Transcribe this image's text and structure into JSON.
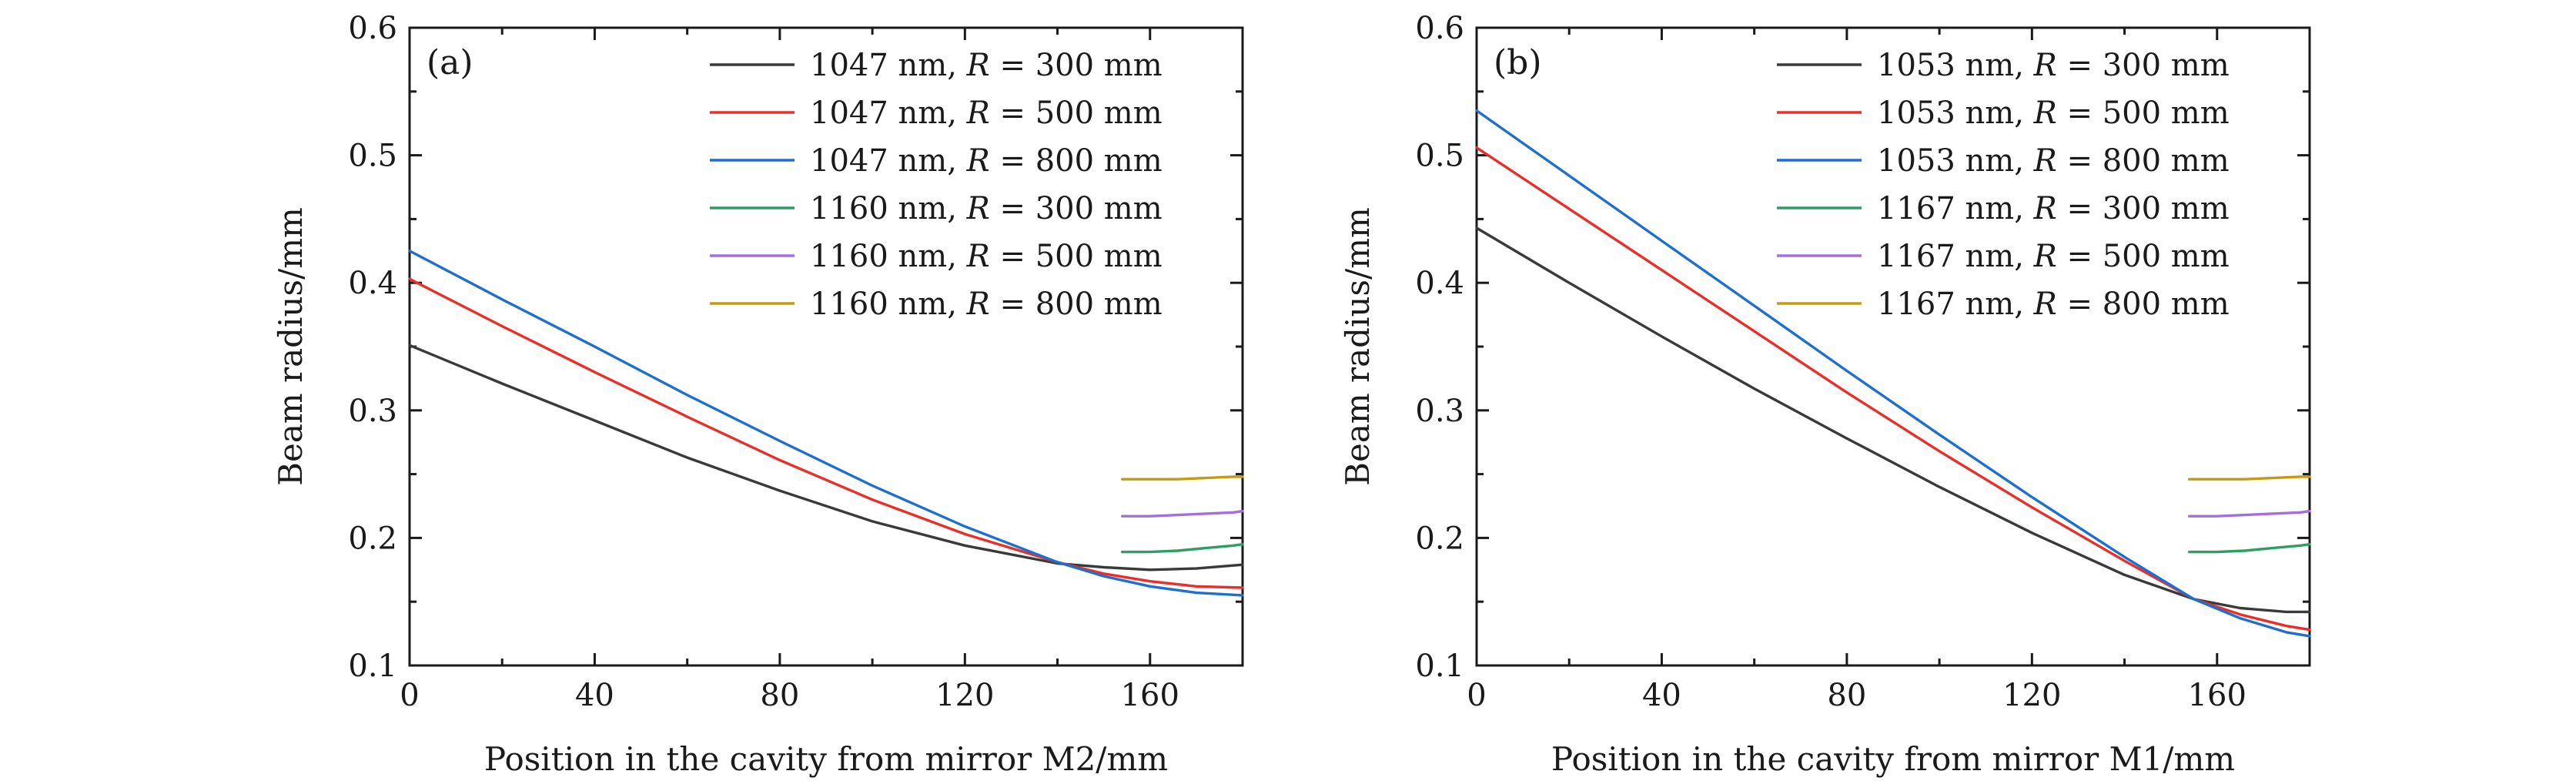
{
  "chart_data": [
    {
      "type": "line",
      "panel_label": "(a)",
      "xlabel": "Position in the cavity from mirror M2/mm",
      "ylabel": "Beam radius/mm",
      "xlim": [
        0,
        180
      ],
      "ylim": [
        0.1,
        0.6
      ],
      "xticks": [
        0,
        40,
        80,
        120,
        160
      ],
      "xtick_labels": [
        "0",
        "40",
        "80",
        "120",
        "160"
      ],
      "yticks": [
        0.1,
        0.2,
        0.3,
        0.4,
        0.5,
        0.6
      ],
      "ytick_labels": [
        "0.1",
        "0.2",
        "0.3",
        "0.4",
        "0.5",
        "0.6"
      ],
      "legend_position": "top-right",
      "series": [
        {
          "name": "1047 nm, R = 300 mm",
          "legend_prefix": "1047 nm, ",
          "legend_var": "R",
          "legend_suffix": " = 300 mm",
          "color": "#3a3a3a",
          "x": [
            0,
            20,
            40,
            60,
            80,
            100,
            120,
            140,
            150,
            160,
            170,
            180
          ],
          "y": [
            0.351,
            0.321,
            0.292,
            0.263,
            0.237,
            0.213,
            0.194,
            0.18,
            0.177,
            0.175,
            0.176,
            0.179
          ]
        },
        {
          "name": "1047 nm, R = 500 mm",
          "legend_prefix": "1047 nm, ",
          "legend_var": "R",
          "legend_suffix": " = 500 mm",
          "color": "#e8302b",
          "x": [
            0,
            20,
            40,
            60,
            80,
            100,
            120,
            140,
            150,
            160,
            170,
            180
          ],
          "y": [
            0.403,
            0.366,
            0.33,
            0.295,
            0.261,
            0.23,
            0.203,
            0.181,
            0.172,
            0.166,
            0.162,
            0.161
          ]
        },
        {
          "name": "1047 nm, R = 800 mm",
          "legend_prefix": "1047 nm, ",
          "legend_var": "R",
          "legend_suffix": " = 800 mm",
          "color": "#1f6fce",
          "x": [
            0,
            20,
            40,
            60,
            80,
            100,
            120,
            140,
            150,
            160,
            170,
            180
          ],
          "y": [
            0.425,
            0.387,
            0.35,
            0.312,
            0.276,
            0.241,
            0.209,
            0.181,
            0.17,
            0.162,
            0.157,
            0.155
          ]
        },
        {
          "name": "1160 nm, R = 300 mm",
          "legend_prefix": "1160 nm, ",
          "legend_var": "R",
          "legend_suffix": " = 300 mm",
          "color": "#2e9e62",
          "x": [
            154,
            160,
            166,
            172,
            178,
            180
          ],
          "y": [
            0.189,
            0.189,
            0.19,
            0.192,
            0.194,
            0.195
          ]
        },
        {
          "name": "1160 nm, R = 500 mm",
          "legend_prefix": "1160 nm, ",
          "legend_var": "R",
          "legend_suffix": " = 500 mm",
          "color": "#a56ee0",
          "x": [
            154,
            160,
            166,
            172,
            178,
            180
          ],
          "y": [
            0.217,
            0.217,
            0.218,
            0.219,
            0.22,
            0.221
          ]
        },
        {
          "name": "1160 nm, R = 800 mm",
          "legend_prefix": "1160 nm, ",
          "legend_var": "R",
          "legend_suffix": " = 800 mm",
          "color": "#c49a12",
          "x": [
            154,
            160,
            166,
            172,
            178,
            180
          ],
          "y": [
            0.246,
            0.246,
            0.246,
            0.247,
            0.248,
            0.248
          ]
        }
      ]
    },
    {
      "type": "line",
      "panel_label": "(b)",
      "xlabel": "Position in the cavity from mirror M1/mm",
      "ylabel": "Beam radius/mm",
      "xlim": [
        0,
        180
      ],
      "ylim": [
        0.1,
        0.6
      ],
      "xticks": [
        0,
        40,
        80,
        120,
        160
      ],
      "xtick_labels": [
        "0",
        "40",
        "80",
        "120",
        "160"
      ],
      "yticks": [
        0.1,
        0.2,
        0.3,
        0.4,
        0.5,
        0.6
      ],
      "ytick_labels": [
        "0.1",
        "0.2",
        "0.3",
        "0.4",
        "0.5",
        "0.6"
      ],
      "legend_position": "top-right",
      "series": [
        {
          "name": "1053 nm, R = 300 mm",
          "legend_prefix": "1053 nm, ",
          "legend_var": "R",
          "legend_suffix": " = 300 mm",
          "color": "#3a3a3a",
          "x": [
            0,
            20,
            40,
            60,
            80,
            100,
            120,
            140,
            155,
            165,
            175,
            180
          ],
          "y": [
            0.443,
            0.4,
            0.358,
            0.317,
            0.278,
            0.24,
            0.204,
            0.171,
            0.152,
            0.145,
            0.142,
            0.142
          ]
        },
        {
          "name": "1053 nm, R = 500 mm",
          "legend_prefix": "1053 nm, ",
          "legend_var": "R",
          "legend_suffix": " = 500 mm",
          "color": "#e8302b",
          "x": [
            0,
            20,
            40,
            60,
            80,
            100,
            120,
            140,
            155,
            165,
            175,
            180
          ],
          "y": [
            0.506,
            0.458,
            0.41,
            0.362,
            0.314,
            0.268,
            0.224,
            0.182,
            0.152,
            0.14,
            0.131,
            0.128
          ]
        },
        {
          "name": "1053 nm, R = 800 mm",
          "legend_prefix": "1053 nm, ",
          "legend_var": "R",
          "legend_suffix": " = 800 mm",
          "color": "#1f6fce",
          "x": [
            0,
            20,
            40,
            60,
            80,
            100,
            120,
            140,
            155,
            165,
            175,
            180
          ],
          "y": [
            0.535,
            0.484,
            0.433,
            0.382,
            0.331,
            0.281,
            0.232,
            0.185,
            0.152,
            0.137,
            0.126,
            0.123
          ]
        },
        {
          "name": "1167 nm, R = 300 mm",
          "legend_prefix": "1167 nm, ",
          "legend_var": "R",
          "legend_suffix": " = 300 mm",
          "color": "#2e9e62",
          "x": [
            154,
            160,
            166,
            172,
            178,
            180
          ],
          "y": [
            0.189,
            0.189,
            0.19,
            0.192,
            0.194,
            0.195
          ]
        },
        {
          "name": "1167 nm, R = 500 mm",
          "legend_prefix": "1167 nm, ",
          "legend_var": "R",
          "legend_suffix": " = 500 mm",
          "color": "#a56ee0",
          "x": [
            154,
            160,
            166,
            172,
            178,
            180
          ],
          "y": [
            0.217,
            0.217,
            0.218,
            0.219,
            0.22,
            0.221
          ]
        },
        {
          "name": "1167 nm, R = 800 mm",
          "legend_prefix": "1167 nm, ",
          "legend_var": "R",
          "legend_suffix": " = 800 mm",
          "color": "#c49a12",
          "x": [
            154,
            160,
            166,
            172,
            178,
            180
          ],
          "y": [
            0.246,
            0.246,
            0.246,
            0.247,
            0.248,
            0.248
          ]
        }
      ]
    }
  ]
}
